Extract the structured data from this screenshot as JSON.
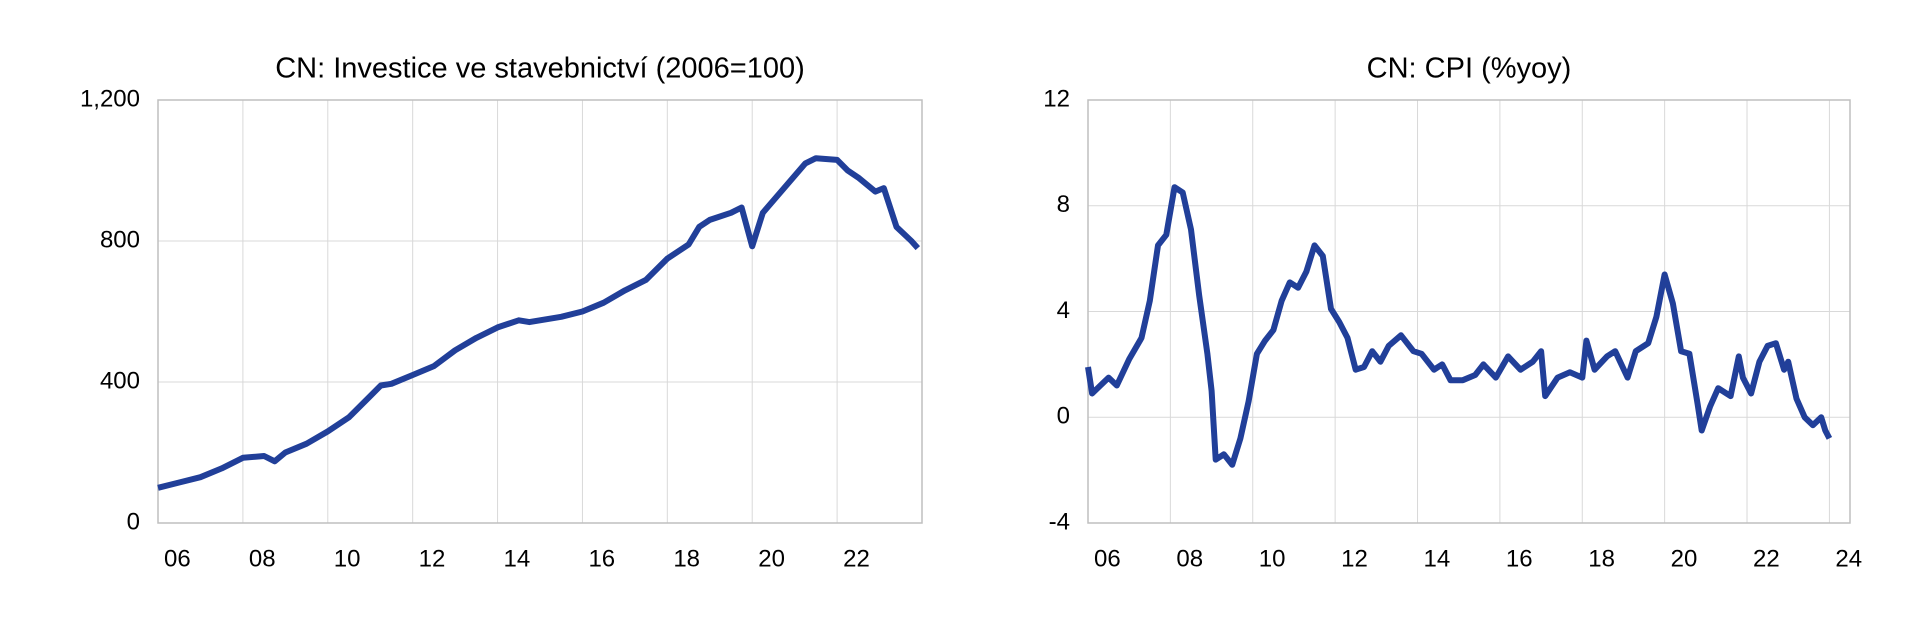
{
  "chart_data": [
    {
      "type": "line",
      "title": "CN: Investice ve stavebnictví (2006=100)",
      "x": [
        2006,
        2006.5,
        2007,
        2007.5,
        2008,
        2008.5,
        2008.75,
        2009,
        2009.5,
        2010,
        2010.5,
        2011,
        2011.25,
        2011.5,
        2012,
        2012.5,
        2013,
        2013.5,
        2014,
        2014.5,
        2014.75,
        2015,
        2015.5,
        2016,
        2016.5,
        2017,
        2017.5,
        2018,
        2018.5,
        2018.75,
        2019,
        2019.5,
        2019.75,
        2020,
        2020.25,
        2020.75,
        2021.25,
        2021.5,
        2022,
        2022.25,
        2022.5,
        2022.9,
        2023.1,
        2023.4,
        2023.75,
        2023.9
      ],
      "series": [
        {
          "name": "Investice ve stavebnictví",
          "color": "#213f99",
          "values": [
            100,
            115,
            130,
            155,
            185,
            190,
            175,
            200,
            225,
            260,
            300,
            360,
            390,
            395,
            420,
            445,
            490,
            525,
            555,
            575,
            570,
            575,
            585,
            600,
            625,
            660,
            690,
            750,
            790,
            840,
            860,
            880,
            895,
            785,
            880,
            950,
            1020,
            1035,
            1030,
            1000,
            980,
            940,
            950,
            840,
            800,
            780
          ]
        }
      ],
      "xlim": [
        2006,
        2024
      ],
      "xticks": [
        {
          "value": 2006,
          "label": "06"
        },
        {
          "value": 2008,
          "label": "08"
        },
        {
          "value": 2010,
          "label": "10"
        },
        {
          "value": 2012,
          "label": "12"
        },
        {
          "value": 2014,
          "label": "14"
        },
        {
          "value": 2016,
          "label": "16"
        },
        {
          "value": 2018,
          "label": "18"
        },
        {
          "value": 2020,
          "label": "20"
        },
        {
          "value": 2022,
          "label": "22"
        }
      ],
      "ylim": [
        0,
        1200
      ],
      "yticks": [
        0,
        400,
        800,
        {
          "value": 1200,
          "label": "1,200"
        }
      ],
      "grid": true
    },
    {
      "type": "line",
      "title": "CN: CPI (%yoy)",
      "x": [
        2006.0,
        2006.1,
        2006.3,
        2006.5,
        2006.7,
        2007.0,
        2007.3,
        2007.5,
        2007.7,
        2007.9,
        2008.1,
        2008.3,
        2008.5,
        2008.7,
        2008.9,
        2009.0,
        2009.1,
        2009.3,
        2009.5,
        2009.7,
        2009.9,
        2010.1,
        2010.3,
        2010.5,
        2010.7,
        2010.9,
        2011.1,
        2011.3,
        2011.5,
        2011.7,
        2011.9,
        2012.1,
        2012.3,
        2012.5,
        2012.7,
        2012.9,
        2013.1,
        2013.3,
        2013.6,
        2013.9,
        2014.1,
        2014.4,
        2014.6,
        2014.8,
        2015.1,
        2015.4,
        2015.6,
        2015.9,
        2016.2,
        2016.5,
        2016.8,
        2017.0,
        2017.1,
        2017.4,
        2017.7,
        2018.0,
        2018.1,
        2018.3,
        2018.6,
        2018.8,
        2019.1,
        2019.3,
        2019.6,
        2019.8,
        2020.0,
        2020.2,
        2020.4,
        2020.6,
        2020.8,
        2020.9,
        2021.1,
        2021.3,
        2021.6,
        2021.8,
        2021.9,
        2022.1,
        2022.3,
        2022.5,
        2022.7,
        2022.9,
        2023.0,
        2023.2,
        2023.4,
        2023.6,
        2023.8,
        2023.9,
        2024.0
      ],
      "series": [
        {
          "name": "CPI",
          "color": "#213f99",
          "values": [
            1.9,
            0.9,
            1.2,
            1.5,
            1.2,
            2.2,
            3.0,
            4.4,
            6.5,
            6.9,
            8.7,
            8.5,
            7.1,
            4.6,
            2.4,
            1.0,
            -1.6,
            -1.4,
            -1.8,
            -0.8,
            0.6,
            2.4,
            2.9,
            3.3,
            4.4,
            5.1,
            4.9,
            5.5,
            6.5,
            6.1,
            4.1,
            3.6,
            3.0,
            1.8,
            1.9,
            2.5,
            2.1,
            2.7,
            3.1,
            2.5,
            2.4,
            1.8,
            2.0,
            1.4,
            1.4,
            1.6,
            2.0,
            1.5,
            2.3,
            1.8,
            2.1,
            2.5,
            0.8,
            1.5,
            1.7,
            1.5,
            2.9,
            1.8,
            2.3,
            2.5,
            1.5,
            2.5,
            2.8,
            3.8,
            5.4,
            4.3,
            2.5,
            2.4,
            0.5,
            -0.5,
            0.4,
            1.1,
            0.8,
            2.3,
            1.5,
            0.9,
            2.1,
            2.7,
            2.8,
            1.8,
            2.1,
            0.7,
            0.0,
            -0.3,
            0.0,
            -0.5,
            -0.8
          ]
        }
      ],
      "xlim": [
        2006,
        2024.5
      ],
      "xticks": [
        {
          "value": 2006,
          "label": "06"
        },
        {
          "value": 2008,
          "label": "08"
        },
        {
          "value": 2010,
          "label": "10"
        },
        {
          "value": 2012,
          "label": "12"
        },
        {
          "value": 2014,
          "label": "14"
        },
        {
          "value": 2016,
          "label": "16"
        },
        {
          "value": 2018,
          "label": "18"
        },
        {
          "value": 2020,
          "label": "20"
        },
        {
          "value": 2022,
          "label": "22"
        },
        {
          "value": 2024,
          "label": "24"
        }
      ],
      "ylim": [
        -4,
        12
      ],
      "yticks": [
        -4,
        0,
        4,
        8,
        12
      ],
      "grid": true
    }
  ]
}
